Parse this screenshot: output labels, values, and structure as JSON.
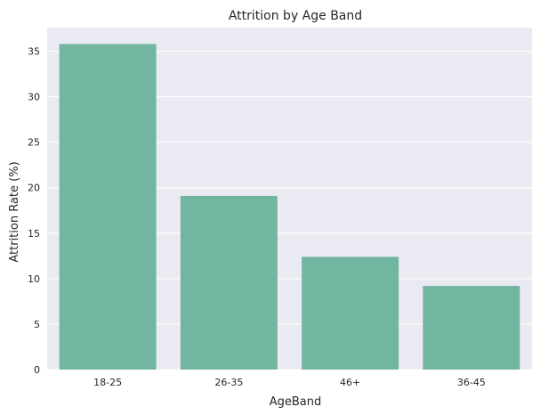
{
  "chart_data": {
    "type": "bar",
    "title": "Attrition by Age Band",
    "xlabel": "AgeBand",
    "ylabel": "Attrition Rate (%)",
    "categories": [
      "18-25",
      "26-35",
      "46+",
      "36-45"
    ],
    "values": [
      35.8,
      19.1,
      12.4,
      9.2
    ],
    "ylim": [
      0,
      37.6
    ],
    "yticks": [
      0,
      5,
      10,
      15,
      20,
      25,
      30,
      35
    ],
    "grid": true,
    "colors": {
      "bar": "#72b6a1",
      "plot_background": "#eaeaf2",
      "grid": "#ffffff",
      "text": "#262626"
    }
  }
}
